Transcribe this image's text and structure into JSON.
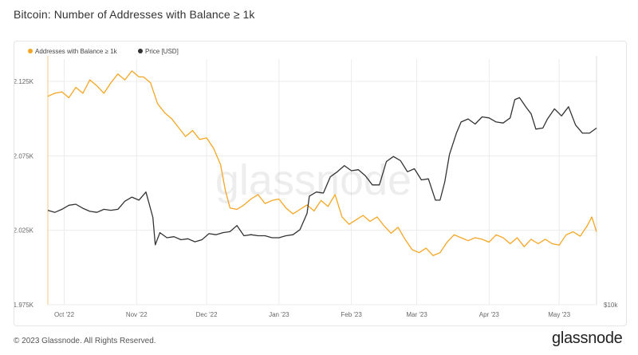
{
  "title": "Bitcoin: Number of Addresses with Balance ≥ 1k",
  "footer": {
    "copyright": "© 2023 Glassnode. All Rights Reserved.",
    "logo": "glassnode"
  },
  "watermark": "glassnode",
  "colors": {
    "addresses": "#f5a623",
    "price": "#333333",
    "grid": "#ececec",
    "axis_text": "#666666"
  },
  "chart_data": {
    "type": "line",
    "title": "Bitcoin: Number of Addresses with Balance ≥ 1k",
    "legend": [
      "Addresses with Balance ≥ 1k",
      "Price [USD]"
    ],
    "legend_position": "top-left",
    "grid": true,
    "x_ticks": [
      "Oct '22",
      "Nov '22",
      "Dec '22",
      "Jan '23",
      "Feb '23",
      "Mar '23",
      "Apr '23",
      "May '23"
    ],
    "y_ticks_left": [
      "2.125K",
      "2.075K",
      "2.025K",
      "1.975K"
    ],
    "y_ticks_right": [
      "$10k"
    ],
    "ylim_left": [
      1975,
      2140
    ],
    "price_ylim": [
      10000,
      34200
    ],
    "x_start": "2022-09-24",
    "x_end": "2023-05-17",
    "series": [
      {
        "name": "Addresses with Balance ≥ 1k",
        "axis": "left",
        "points": [
          [
            "2022-09-24",
            2115
          ],
          [
            "2022-09-27",
            2117
          ],
          [
            "2022-09-30",
            2118
          ],
          [
            "2022-10-03",
            2114
          ],
          [
            "2022-10-06",
            2121
          ],
          [
            "2022-10-09",
            2117
          ],
          [
            "2022-10-12",
            2126
          ],
          [
            "2022-10-15",
            2122
          ],
          [
            "2022-10-18",
            2117
          ],
          [
            "2022-10-21",
            2124
          ],
          [
            "2022-10-24",
            2130
          ],
          [
            "2022-10-27",
            2126
          ],
          [
            "2022-10-30",
            2132
          ],
          [
            "2022-11-02",
            2128
          ],
          [
            "2022-11-04",
            2128
          ],
          [
            "2022-11-07",
            2124
          ],
          [
            "2022-11-10",
            2110
          ],
          [
            "2022-11-13",
            2104
          ],
          [
            "2022-11-16",
            2100
          ],
          [
            "2022-11-19",
            2094
          ],
          [
            "2022-11-22",
            2088
          ],
          [
            "2022-11-25",
            2092
          ],
          [
            "2022-11-28",
            2086
          ],
          [
            "2022-12-01",
            2087
          ],
          [
            "2022-12-04",
            2080
          ],
          [
            "2022-12-07",
            2069
          ],
          [
            "2022-12-09",
            2052
          ],
          [
            "2022-12-11",
            2040
          ],
          [
            "2022-12-14",
            2039
          ],
          [
            "2022-12-17",
            2042
          ],
          [
            "2022-12-20",
            2046
          ],
          [
            "2022-12-23",
            2049
          ],
          [
            "2022-12-26",
            2043
          ],
          [
            "2022-12-29",
            2045
          ],
          [
            "2023-01-01",
            2046
          ],
          [
            "2023-01-04",
            2040
          ],
          [
            "2023-01-07",
            2036
          ],
          [
            "2023-01-10",
            2039
          ],
          [
            "2023-01-13",
            2042
          ],
          [
            "2023-01-16",
            2038
          ],
          [
            "2023-01-19",
            2045
          ],
          [
            "2023-01-22",
            2041
          ],
          [
            "2023-01-25",
            2049
          ],
          [
            "2023-01-28",
            2034
          ],
          [
            "2023-01-31",
            2029
          ],
          [
            "2023-02-03",
            2032
          ],
          [
            "2023-02-06",
            2035
          ],
          [
            "2023-02-09",
            2031
          ],
          [
            "2023-02-12",
            2034
          ],
          [
            "2023-02-15",
            2028
          ],
          [
            "2023-02-18",
            2023
          ],
          [
            "2023-02-21",
            2027
          ],
          [
            "2023-02-24",
            2019
          ],
          [
            "2023-02-27",
            2012
          ],
          [
            "2023-03-02",
            2010
          ],
          [
            "2023-03-05",
            2013
          ],
          [
            "2023-03-08",
            2008
          ],
          [
            "2023-03-11",
            2010
          ],
          [
            "2023-03-14",
            2017
          ],
          [
            "2023-03-17",
            2022
          ],
          [
            "2023-03-20",
            2020
          ],
          [
            "2023-03-23",
            2018
          ],
          [
            "2023-03-26",
            2020
          ],
          [
            "2023-03-29",
            2019
          ],
          [
            "2023-04-01",
            2017
          ],
          [
            "2023-04-04",
            2022
          ],
          [
            "2023-04-07",
            2020
          ],
          [
            "2023-04-10",
            2016
          ],
          [
            "2023-04-13",
            2020
          ],
          [
            "2023-04-16",
            2014
          ],
          [
            "2023-04-19",
            2019
          ],
          [
            "2023-04-22",
            2016
          ],
          [
            "2023-04-25",
            2019
          ],
          [
            "2023-04-28",
            2016
          ],
          [
            "2023-05-01",
            2015
          ],
          [
            "2023-05-04",
            2022
          ],
          [
            "2023-05-07",
            2024
          ],
          [
            "2023-05-10",
            2021
          ],
          [
            "2023-05-13",
            2028
          ],
          [
            "2023-05-15",
            2034
          ],
          [
            "2023-05-17",
            2024
          ]
        ]
      },
      {
        "name": "Price [USD]",
        "axis": "right",
        "points": [
          [
            "2022-09-24",
            19300
          ],
          [
            "2022-09-27",
            19100
          ],
          [
            "2022-09-30",
            19400
          ],
          [
            "2022-10-03",
            19800
          ],
          [
            "2022-10-06",
            19900
          ],
          [
            "2022-10-09",
            19500
          ],
          [
            "2022-10-12",
            19200
          ],
          [
            "2022-10-15",
            19100
          ],
          [
            "2022-10-18",
            19400
          ],
          [
            "2022-10-21",
            19300
          ],
          [
            "2022-10-24",
            19400
          ],
          [
            "2022-10-27",
            20200
          ],
          [
            "2022-10-30",
            20600
          ],
          [
            "2022-11-02",
            20300
          ],
          [
            "2022-11-05",
            21100
          ],
          [
            "2022-11-08",
            18600
          ],
          [
            "2022-11-09",
            15900
          ],
          [
            "2022-11-11",
            17100
          ],
          [
            "2022-11-14",
            16600
          ],
          [
            "2022-11-17",
            16700
          ],
          [
            "2022-11-20",
            16400
          ],
          [
            "2022-11-23",
            16500
          ],
          [
            "2022-11-26",
            16200
          ],
          [
            "2022-11-29",
            16400
          ],
          [
            "2022-12-02",
            17000
          ],
          [
            "2022-12-05",
            16900
          ],
          [
            "2022-12-08",
            17100
          ],
          [
            "2022-12-11",
            17200
          ],
          [
            "2022-12-14",
            17800
          ],
          [
            "2022-12-17",
            16800
          ],
          [
            "2022-12-20",
            16900
          ],
          [
            "2022-12-23",
            16800
          ],
          [
            "2022-12-26",
            16800
          ],
          [
            "2022-12-29",
            16600
          ],
          [
            "2023-01-01",
            16600
          ],
          [
            "2023-01-04",
            16800
          ],
          [
            "2023-01-07",
            16900
          ],
          [
            "2023-01-10",
            17400
          ],
          [
            "2023-01-13",
            19000
          ],
          [
            "2023-01-14",
            20700
          ],
          [
            "2023-01-17",
            21100
          ],
          [
            "2023-01-20",
            21000
          ],
          [
            "2023-01-23",
            22600
          ],
          [
            "2023-01-26",
            23100
          ],
          [
            "2023-01-29",
            23700
          ],
          [
            "2023-02-01",
            23200
          ],
          [
            "2023-02-04",
            23300
          ],
          [
            "2023-02-07",
            22700
          ],
          [
            "2023-02-10",
            21800
          ],
          [
            "2023-02-13",
            21800
          ],
          [
            "2023-02-16",
            24100
          ],
          [
            "2023-02-19",
            24600
          ],
          [
            "2023-02-22",
            24200
          ],
          [
            "2023-02-25",
            23100
          ],
          [
            "2023-02-28",
            23400
          ],
          [
            "2023-03-03",
            22300
          ],
          [
            "2023-03-06",
            22400
          ],
          [
            "2023-03-09",
            20300
          ],
          [
            "2023-03-11",
            20300
          ],
          [
            "2023-03-13",
            22100
          ],
          [
            "2023-03-15",
            24800
          ],
          [
            "2023-03-18",
            26900
          ],
          [
            "2023-03-20",
            28000
          ],
          [
            "2023-03-23",
            28300
          ],
          [
            "2023-03-26",
            27800
          ],
          [
            "2023-03-29",
            28500
          ],
          [
            "2023-04-01",
            28400
          ],
          [
            "2023-04-04",
            28000
          ],
          [
            "2023-04-07",
            27900
          ],
          [
            "2023-04-10",
            28400
          ],
          [
            "2023-04-12",
            30200
          ],
          [
            "2023-04-14",
            30400
          ],
          [
            "2023-04-17",
            29400
          ],
          [
            "2023-04-19",
            28800
          ],
          [
            "2023-04-21",
            27300
          ],
          [
            "2023-04-24",
            27400
          ],
          [
            "2023-04-26",
            28300
          ],
          [
            "2023-04-29",
            29300
          ],
          [
            "2023-05-02",
            28600
          ],
          [
            "2023-05-05",
            29500
          ],
          [
            "2023-05-08",
            27700
          ],
          [
            "2023-05-11",
            26900
          ],
          [
            "2023-05-14",
            26900
          ],
          [
            "2023-05-17",
            27400
          ]
        ]
      }
    ]
  }
}
